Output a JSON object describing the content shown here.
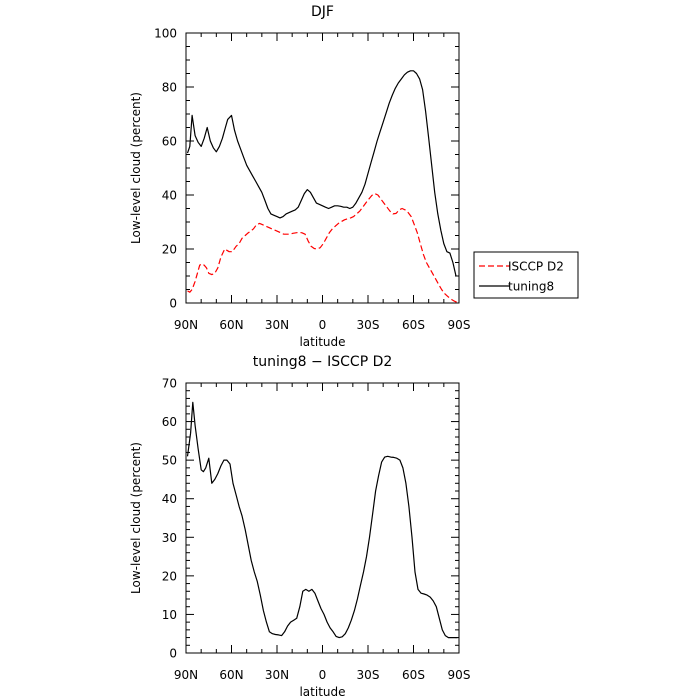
{
  "chart_data": [
    {
      "type": "line",
      "title": "DJF",
      "xlabel": "latitude",
      "ylabel": "Low-level cloud (percent)",
      "xlim": [
        90,
        -90
      ],
      "ylim": [
        0,
        100
      ],
      "xticks": [
        90,
        60,
        30,
        0,
        -30,
        -60,
        -90
      ],
      "xtick_labels": [
        "90N",
        "60N",
        "30N",
        "0",
        "30S",
        "60S",
        "90S"
      ],
      "yticks": [
        0,
        20,
        40,
        60,
        80,
        100
      ],
      "ytick_labels": [
        "0",
        "20",
        "40",
        "60",
        "80",
        "100"
      ],
      "legend_position": "right",
      "series": [
        {
          "name": "ISCCP D2",
          "color": "#ff0000",
          "style": "dashed",
          "x": [
            89,
            87.5,
            86,
            84,
            82.5,
            81,
            79.5,
            78,
            76.5,
            75,
            73,
            71,
            69,
            67,
            64.5,
            61.5,
            59.5,
            57,
            55,
            53,
            51,
            49,
            47.5,
            45.5,
            43.5,
            41.5,
            39.5,
            37.5,
            35.5,
            33.5,
            31.5,
            29.5,
            27.5,
            25.5,
            23.5,
            21.5,
            19.5,
            17.5,
            15.5,
            13.5,
            11.5,
            9.5,
            7.5,
            5.5,
            3.5,
            1.5,
            -0.5,
            -2.5,
            -4.5,
            -6.5,
            -8.5,
            -10.5,
            -12.5,
            -14.5,
            -16.5,
            -18.5,
            -20.5,
            -22.5,
            -24.5,
            -26.5,
            -28.5,
            -30.5,
            -32.5,
            -34.5,
            -36.5,
            -38.5,
            -40.5,
            -42.5,
            -44.5,
            -46.5,
            -48.5,
            -50.5,
            -52.5,
            -54.5,
            -56.5,
            -58.5,
            -60.5,
            -62.5,
            -64.5,
            -66.5,
            -68.5,
            -70.5,
            -72.5,
            -74.5,
            -76.5,
            -78.5,
            -80.5,
            -82.5,
            -84.5,
            -86.5,
            -88.5
          ],
          "y": [
            4.5,
            4.0,
            5.0,
            8.0,
            11.0,
            14.0,
            14.5,
            14.0,
            13.0,
            11.0,
            10.5,
            11.0,
            13.0,
            17.0,
            20.0,
            19.0,
            19.0,
            21.0,
            22.0,
            24.0,
            25.0,
            26.0,
            26.5,
            27.5,
            29.0,
            29.5,
            29.0,
            28.5,
            28.0,
            27.5,
            27.0,
            26.5,
            26.0,
            25.5,
            25.5,
            25.5,
            25.8,
            26.0,
            26.2,
            26.0,
            25.5,
            23.0,
            21.0,
            20.2,
            20.0,
            20.5,
            22.0,
            24.0,
            26.0,
            27.5,
            28.5,
            29.5,
            30.2,
            30.8,
            31.2,
            31.5,
            32.0,
            33.0,
            34.0,
            35.5,
            37.0,
            38.5,
            39.8,
            40.5,
            40.0,
            38.5,
            37.0,
            35.5,
            34.0,
            33.0,
            33.2,
            34.5,
            35.0,
            34.5,
            33.5,
            32.0,
            29.0,
            26.0,
            22.0,
            18.0,
            15.0,
            13.0,
            11.0,
            9.0,
            7.0,
            5.0,
            3.5,
            2.5,
            1.5,
            0.8,
            0.3
          ]
        },
        {
          "name": "tuning8",
          "color": "#000000",
          "style": "solid",
          "x": [
            89,
            87.5,
            86,
            84,
            82,
            80,
            78,
            76,
            74,
            72,
            70,
            68,
            66,
            64,
            62.5,
            60,
            58,
            56,
            54,
            52,
            50,
            48,
            46,
            44,
            42,
            40,
            38,
            36,
            34,
            32,
            30,
            28,
            26,
            24,
            22,
            20,
            18,
            16,
            14,
            12,
            10,
            8,
            6,
            4,
            2,
            0,
            -2,
            -4,
            -6,
            -8,
            -10,
            -12,
            -14,
            -16,
            -18,
            -20,
            -22,
            -24,
            -26,
            -28,
            -30,
            -32,
            -34,
            -36,
            -38,
            -40,
            -42,
            -44,
            -46,
            -48,
            -50,
            -52,
            -54,
            -56,
            -58,
            -60,
            -62,
            -64,
            -66,
            -68,
            -70,
            -72,
            -74,
            -76,
            -78,
            -80,
            -82,
            -84,
            -86,
            -88
          ],
          "y": [
            55.5,
            58.0,
            69.5,
            62.0,
            59.5,
            58.0,
            61.0,
            65.0,
            60.0,
            57.5,
            56.0,
            58.0,
            61.0,
            65.0,
            68.0,
            69.5,
            64.0,
            60.0,
            57.0,
            54.0,
            51.0,
            49.0,
            47.0,
            45.0,
            43.0,
            41.0,
            38.0,
            35.0,
            33.0,
            32.5,
            32.0,
            31.5,
            32.0,
            33.0,
            33.5,
            34.0,
            34.5,
            35.5,
            38.0,
            40.5,
            42.0,
            41.0,
            39.0,
            37.0,
            36.5,
            36.0,
            35.5,
            35.0,
            35.5,
            36.0,
            36.0,
            35.8,
            35.5,
            35.5,
            35.0,
            35.5,
            37.0,
            39.0,
            41.0,
            44.0,
            48.0,
            52.0,
            56.0,
            60.0,
            63.5,
            67.0,
            70.5,
            74.0,
            77.0,
            79.5,
            81.5,
            83.0,
            84.5,
            85.5,
            86.0,
            86.0,
            85.0,
            83.0,
            79.0,
            71.0,
            61.0,
            51.0,
            41.0,
            33.0,
            27.0,
            22.0,
            19.0,
            18.5,
            15.0,
            10.0
          ]
        }
      ]
    },
    {
      "type": "line",
      "title": "tuning8 − ISCCP D2",
      "xlabel": "latitude",
      "ylabel": "Low-level cloud (percent)",
      "xlim": [
        90,
        -90
      ],
      "ylim": [
        0,
        70
      ],
      "xticks": [
        90,
        60,
        30,
        0,
        -30,
        -60,
        -90
      ],
      "xtick_labels": [
        "90N",
        "60N",
        "30N",
        "0",
        "30S",
        "60S",
        "90S"
      ],
      "yticks": [
        0,
        10,
        20,
        30,
        40,
        50,
        60,
        70
      ],
      "ytick_labels": [
        "0",
        "10",
        "20",
        "30",
        "40",
        "50",
        "60",
        "70"
      ],
      "series": [
        {
          "color": "#000000",
          "style": "solid",
          "x": [
            89,
            87,
            85.5,
            84,
            82,
            80,
            78.5,
            77,
            75,
            73,
            71,
            69,
            67,
            65,
            63,
            61,
            59,
            57,
            55,
            53,
            51,
            49,
            47,
            45,
            43,
            41,
            39,
            37,
            35,
            33,
            31,
            29,
            27,
            25,
            23,
            21,
            19,
            17,
            15,
            13,
            11,
            9,
            7,
            5,
            3,
            1,
            -1,
            -3,
            -5,
            -7,
            -9,
            -11,
            -13,
            -15,
            -17,
            -19,
            -21,
            -23,
            -25,
            -27,
            -29,
            -31,
            -33,
            -35,
            -37,
            -39,
            -41,
            -43,
            -45,
            -47,
            -49,
            -51,
            -53,
            -55,
            -57,
            -59,
            -61,
            -63,
            -65,
            -67,
            -69,
            -71,
            -73,
            -75,
            -77,
            -79,
            -81,
            -83,
            -85,
            -87,
            -89
          ],
          "y": [
            51.0,
            57.0,
            65.0,
            59.0,
            53.0,
            47.5,
            47.0,
            48.0,
            50.5,
            44.0,
            45.0,
            46.5,
            48.5,
            50.0,
            50.0,
            49.0,
            44.0,
            41.0,
            38.0,
            35.5,
            32.0,
            28.0,
            24.0,
            21.0,
            18.5,
            15.0,
            11.0,
            8.0,
            5.5,
            5.0,
            4.8,
            4.7,
            4.5,
            5.5,
            7.0,
            8.0,
            8.5,
            9.0,
            12.0,
            16.0,
            16.5,
            16.0,
            16.5,
            15.5,
            13.5,
            11.5,
            10.0,
            8.0,
            6.5,
            5.5,
            4.3,
            4.0,
            4.2,
            5.0,
            6.5,
            8.5,
            11.0,
            14.0,
            17.5,
            21.0,
            25.0,
            30.0,
            36.0,
            42.0,
            46.0,
            49.5,
            50.8,
            51.0,
            50.8,
            50.7,
            50.5,
            50.0,
            48.0,
            44.0,
            38.0,
            30.0,
            21.0,
            16.5,
            15.5,
            15.3,
            15.0,
            14.5,
            13.5,
            12.0,
            9.0,
            6.0,
            4.5,
            4.0,
            4.0,
            4.0,
            4.0
          ]
        }
      ]
    }
  ]
}
